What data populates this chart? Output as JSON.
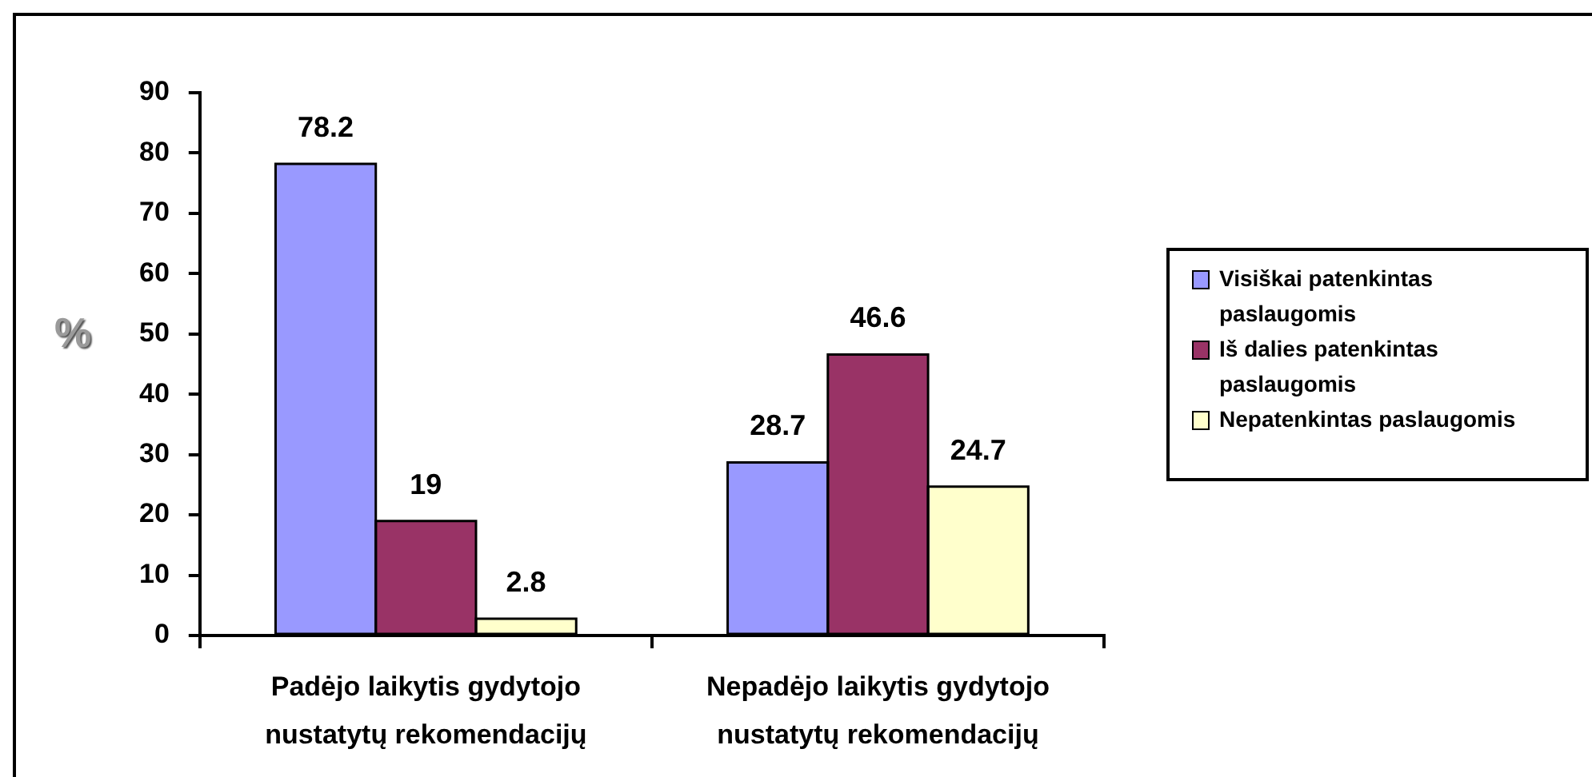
{
  "chart_data": {
    "type": "bar",
    "ylabel": "%",
    "categories": [
      "Padėjo laikytis gydytojo nustatytų rekomendacijų",
      "Nepadėjo laikytis gydytojo nustatytų rekomendacijų"
    ],
    "series": [
      {
        "name": "Visiškai patenkintas paslaugomis",
        "color": "#9999ff",
        "values": [
          78.2,
          28.7
        ]
      },
      {
        "name": "Iš dalies patenkintas paslaugomis",
        "color": "#993366",
        "values": [
          19,
          46.6
        ]
      },
      {
        "name": "Nepatenkintas paslaugomis",
        "color": "#ffffcc",
        "values": [
          2.8,
          24.7
        ]
      }
    ],
    "ylim": [
      0,
      90
    ],
    "yticks": [
      0,
      10,
      20,
      30,
      40,
      50,
      60,
      70,
      80,
      90
    ],
    "grid": false,
    "legend": "right",
    "data_labels": true
  }
}
